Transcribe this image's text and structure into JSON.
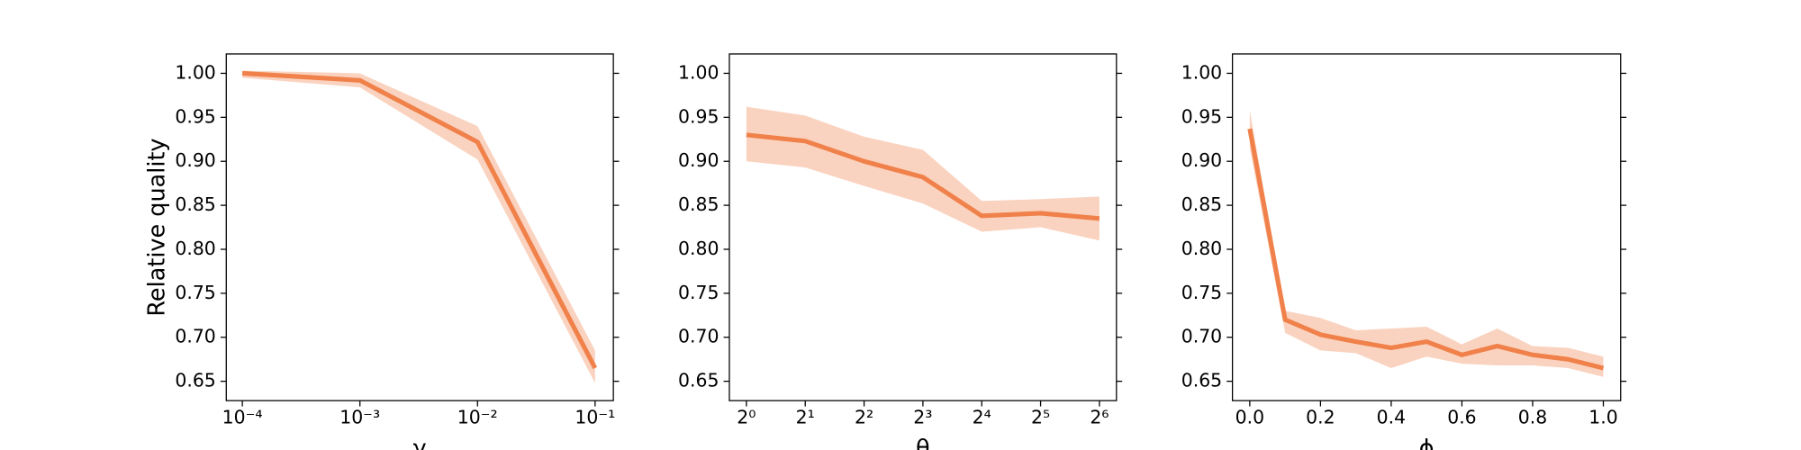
{
  "chart_data": [
    {
      "type": "line",
      "ylabel": "Relative quality",
      "xlabel": "γ",
      "xscale": "log",
      "x": [
        0.0001,
        0.001,
        0.01,
        0.1
      ],
      "xlim": [
        7.3e-05,
        0.143
      ],
      "xticks": [
        {
          "value": 0.0001,
          "label": "10⁻⁴"
        },
        {
          "value": 0.001,
          "label": "10⁻³"
        },
        {
          "value": 0.01,
          "label": "10⁻²"
        },
        {
          "value": 0.1,
          "label": "10⁻¹"
        }
      ],
      "ylim": [
        0.628,
        1.022
      ],
      "yticks": [
        {
          "value": 1,
          "label": "1.00"
        },
        0.95,
        {
          "value": 0.9,
          "label": "0.90"
        },
        0.85,
        {
          "value": 0.8,
          "label": "0.80"
        },
        0.75,
        {
          "value": 0.7,
          "label": "0.70"
        },
        0.65
      ],
      "series": [
        {
          "color": "#f0814a",
          "values": [
            1.0,
            0.992,
            0.922,
            0.665
          ],
          "lower": [
            0.995,
            0.984,
            0.902,
            0.648
          ],
          "upper": [
            1.003,
            1.0,
            0.94,
            0.685
          ]
        }
      ]
    },
    {
      "type": "line",
      "xlabel": "θ",
      "xscale": "log",
      "x": [
        1,
        2,
        4,
        8,
        16,
        32,
        64
      ],
      "xlim": [
        0.818,
        78.2
      ],
      "xticks": [
        {
          "value": 1,
          "label": "2⁰"
        },
        {
          "value": 2,
          "label": "2¹"
        },
        {
          "value": 4,
          "label": "2²"
        },
        {
          "value": 8,
          "label": "2³"
        },
        {
          "value": 16,
          "label": "2⁴"
        },
        {
          "value": 32,
          "label": "2⁵"
        },
        {
          "value": 64,
          "label": "2⁶"
        }
      ],
      "ylim": [
        0.628,
        1.022
      ],
      "yticks": [
        {
          "value": 1,
          "label": "1.00"
        },
        0.95,
        {
          "value": 0.9,
          "label": "0.90"
        },
        0.85,
        {
          "value": 0.8,
          "label": "0.80"
        },
        0.75,
        {
          "value": 0.7,
          "label": "0.70"
        },
        0.65
      ],
      "series": [
        {
          "color": "#f0814a",
          "values": [
            0.93,
            0.923,
            0.9,
            0.882,
            0.838,
            0.841,
            0.835
          ],
          "lower": [
            0.9,
            0.893,
            0.872,
            0.852,
            0.82,
            0.825,
            0.81
          ],
          "upper": [
            0.962,
            0.952,
            0.928,
            0.913,
            0.855,
            0.857,
            0.86
          ]
        }
      ]
    },
    {
      "type": "line",
      "xlabel": "ϕ",
      "x": [
        0,
        0.1,
        0.2,
        0.3,
        0.4,
        0.5,
        0.6,
        0.7,
        0.8,
        0.9,
        1
      ],
      "xlim": [
        -0.049,
        1.049
      ],
      "xticks": [
        {
          "value": 0,
          "label": "0.0"
        },
        0.2,
        0.4,
        0.6,
        0.8,
        {
          "value": 1,
          "label": "1.0"
        }
      ],
      "ylim": [
        0.628,
        1.022
      ],
      "yticks": [
        {
          "value": 1,
          "label": "1.00"
        },
        0.95,
        {
          "value": 0.9,
          "label": "0.90"
        },
        0.85,
        {
          "value": 0.8,
          "label": "0.80"
        },
        0.75,
        {
          "value": 0.7,
          "label": "0.70"
        },
        0.65
      ],
      "series": [
        {
          "color": "#f0814a",
          "values": [
            0.937,
            0.72,
            0.703,
            0.695,
            0.688,
            0.695,
            0.68,
            0.69,
            0.68,
            0.675,
            0.665
          ],
          "lower": [
            0.915,
            0.705,
            0.685,
            0.682,
            0.665,
            0.678,
            0.67,
            0.668,
            0.668,
            0.665,
            0.655
          ],
          "upper": [
            0.958,
            0.73,
            0.722,
            0.708,
            0.71,
            0.712,
            0.692,
            0.71,
            0.69,
            0.688,
            0.678
          ]
        }
      ]
    }
  ]
}
